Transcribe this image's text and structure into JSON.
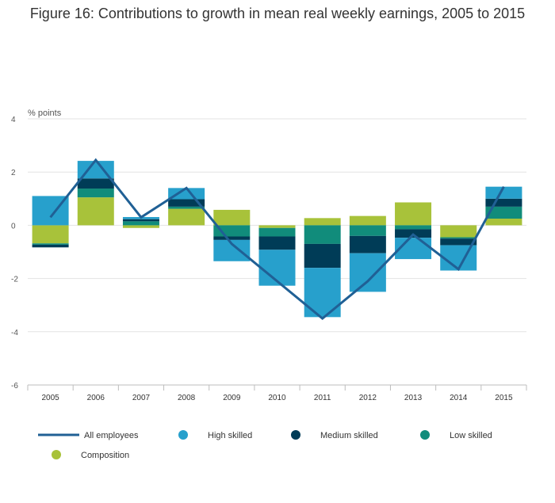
{
  "chart_data": {
    "type": "bar",
    "title": "Figure 16: Contributions to growth in mean real weekly earnings, 2005 to 2015",
    "ylabel": "% points",
    "xlabel": "",
    "ylim": [
      -6,
      4
    ],
    "yticks": [
      4,
      2,
      0,
      -2,
      -4,
      -6
    ],
    "ytick_labels": [
      "4",
      "2",
      "0",
      "-2",
      "-4",
      "-6"
    ],
    "categories": [
      "2005",
      "2006",
      "2007",
      "2008",
      "2009",
      "2010",
      "2011",
      "2012",
      "2013",
      "2014",
      "2015"
    ],
    "series": [
      {
        "name": "Composition",
        "kind": "bar",
        "color": "#a8c23a",
        "values": [
          -0.68,
          1.05,
          -0.1,
          0.62,
          0.58,
          -0.1,
          0.27,
          0.35,
          0.86,
          -0.45,
          0.25
        ]
      },
      {
        "name": "Low skilled",
        "kind": "bar",
        "color": "#118c7b",
        "values": [
          -0.05,
          0.33,
          0.15,
          0.08,
          -0.42,
          -0.32,
          -0.7,
          -0.4,
          -0.15,
          -0.05,
          0.45
        ]
      },
      {
        "name": "Medium skilled",
        "kind": "bar",
        "color": "#003c57",
        "values": [
          -0.1,
          0.38,
          0.08,
          0.28,
          -0.13,
          -0.5,
          -0.9,
          -0.65,
          -0.32,
          -0.25,
          0.3
        ]
      },
      {
        "name": "High skilled",
        "kind": "bar",
        "color": "#27a0cc",
        "values": [
          1.1,
          0.66,
          0.08,
          0.42,
          -0.8,
          -1.35,
          -1.85,
          -1.45,
          -0.8,
          -0.95,
          0.45
        ]
      },
      {
        "name": "All employees",
        "kind": "line",
        "color": "#206095",
        "values": [
          0.3,
          2.45,
          0.3,
          1.4,
          -0.7,
          -2.1,
          -3.5,
          -2.1,
          -0.35,
          -1.65,
          1.45
        ]
      }
    ],
    "legend": {
      "placement": "bottom",
      "order": [
        "All employees",
        "High skilled",
        "Medium skilled",
        "Low skilled",
        "Composition"
      ]
    },
    "grid": true
  }
}
